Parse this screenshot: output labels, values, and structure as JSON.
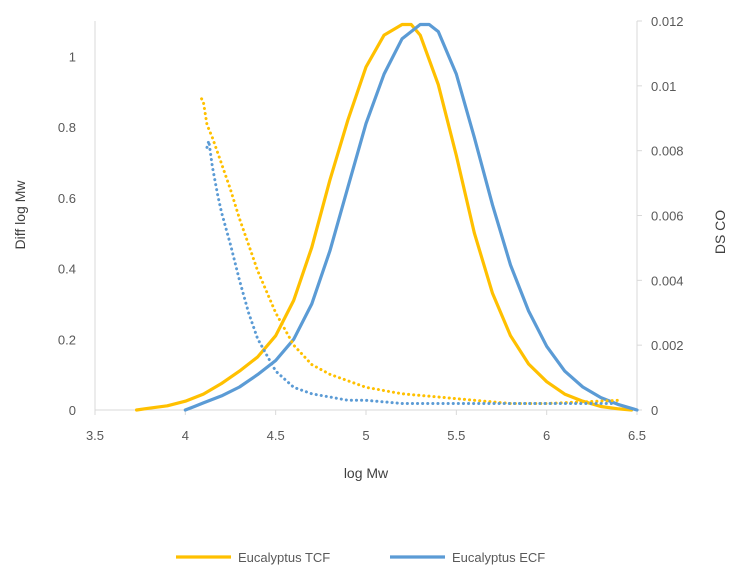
{
  "chart_data": {
    "type": "line",
    "xlabel": "log Mw",
    "ylabel": "Diff log Mw",
    "y2label": "DS CO",
    "xlim": [
      3.5,
      6.5
    ],
    "ylim": [
      0,
      1.1
    ],
    "y2lim": [
      0,
      0.012
    ],
    "x_ticks": [
      "3.5",
      "4",
      "4.5",
      "5",
      "5.5",
      "6",
      "6.5"
    ],
    "y_ticks": [
      "0",
      "0.2",
      "0.4",
      "0.6",
      "0.8",
      "1"
    ],
    "y2_ticks": [
      "0",
      "0.002",
      "0.004",
      "0.006",
      "0.008",
      "0.01",
      "0.012"
    ],
    "grid": false,
    "legend_position": "bottom",
    "series": [
      {
        "name": "Eucalyptus TCF",
        "axis": "left",
        "style": "solid",
        "color": "#FFC000",
        "x": [
          3.73,
          3.8,
          3.9,
          4.0,
          4.1,
          4.2,
          4.3,
          4.4,
          4.5,
          4.6,
          4.7,
          4.8,
          4.9,
          5.0,
          5.1,
          5.2,
          5.25,
          5.3,
          5.4,
          5.5,
          5.6,
          5.7,
          5.8,
          5.9,
          6.0,
          6.1,
          6.2,
          6.3,
          6.4,
          6.47
        ],
        "y": [
          0.0,
          0.005,
          0.012,
          0.025,
          0.045,
          0.075,
          0.11,
          0.15,
          0.21,
          0.31,
          0.46,
          0.65,
          0.82,
          0.97,
          1.06,
          1.09,
          1.09,
          1.06,
          0.92,
          0.72,
          0.5,
          0.33,
          0.21,
          0.13,
          0.08,
          0.045,
          0.025,
          0.01,
          0.003,
          0.0
        ]
      },
      {
        "name": "Eucalyptus ECF",
        "axis": "left",
        "style": "solid",
        "color": "#5B9BD5",
        "x": [
          4.0,
          4.05,
          4.1,
          4.2,
          4.3,
          4.4,
          4.5,
          4.6,
          4.7,
          4.8,
          4.9,
          5.0,
          5.1,
          5.2,
          5.3,
          5.35,
          5.4,
          5.5,
          5.6,
          5.7,
          5.8,
          5.9,
          6.0,
          6.1,
          6.2,
          6.3,
          6.4,
          6.5
        ],
        "y": [
          0.0,
          0.01,
          0.02,
          0.04,
          0.065,
          0.1,
          0.14,
          0.2,
          0.3,
          0.45,
          0.63,
          0.81,
          0.95,
          1.05,
          1.09,
          1.09,
          1.07,
          0.95,
          0.77,
          0.58,
          0.41,
          0.28,
          0.18,
          0.11,
          0.065,
          0.035,
          0.015,
          0.0
        ]
      },
      {
        "axis": "right",
        "style": "dotted",
        "color": "#FFC000",
        "x": [
          4.09,
          4.1,
          4.12,
          4.15,
          4.2,
          4.25,
          4.3,
          4.35,
          4.4,
          4.5,
          4.6,
          4.7,
          4.8,
          4.9,
          5.0,
          5.2,
          5.4,
          5.6,
          5.8,
          6.0,
          6.2,
          6.4
        ],
        "y": [
          0.0096,
          0.0095,
          0.0088,
          0.0084,
          0.0076,
          0.0068,
          0.0059,
          0.0051,
          0.0043,
          0.003,
          0.002,
          0.0014,
          0.0011,
          0.0009,
          0.0007,
          0.0005,
          0.0004,
          0.0003,
          0.0002,
          0.0002,
          0.00025,
          0.0003
        ]
      },
      {
        "axis": "right",
        "style": "dotted",
        "color": "#5B9BD5",
        "x": [
          4.12,
          4.13,
          4.15,
          4.18,
          4.2,
          4.25,
          4.3,
          4.35,
          4.4,
          4.5,
          4.6,
          4.7,
          4.8,
          4.9,
          5.0,
          5.2,
          5.4,
          5.6,
          5.8,
          6.0,
          6.2,
          6.4
        ],
        "y": [
          0.0081,
          0.0083,
          0.0075,
          0.0066,
          0.0061,
          0.0051,
          0.004,
          0.003,
          0.0022,
          0.0012,
          0.0007,
          0.0005,
          0.0004,
          0.0003,
          0.0003,
          0.0002,
          0.0002,
          0.0002,
          0.0002,
          0.0002,
          0.0002,
          0.0002
        ]
      }
    ]
  }
}
